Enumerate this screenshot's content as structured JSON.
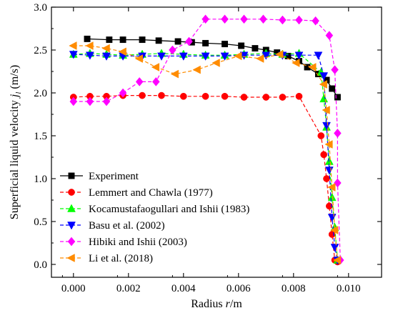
{
  "chart_data": {
    "type": "line",
    "xlabel": "Radius r/m",
    "ylabel": "Superficial liquid velocity j_l (m/s)",
    "xlim": [
      -0.0008,
      0.0112
    ],
    "ylim": [
      -0.15,
      3.0
    ],
    "x_ticks": [
      "0.000",
      "0.002",
      "0.004",
      "0.006",
      "0.008",
      "0.010"
    ],
    "y_ticks": [
      "0.0",
      "0.5",
      "1.0",
      "1.5",
      "2.0",
      "2.5",
      "3.0"
    ],
    "legend_position": "bottom-left",
    "grid": false,
    "series": [
      {
        "name": "Experiment",
        "color": "#000000",
        "dash": "solid",
        "marker": "square",
        "x": [
          0.0005,
          0.0013,
          0.0018,
          0.0025,
          0.0031,
          0.0038,
          0.0043,
          0.0048,
          0.0055,
          0.0061,
          0.0066,
          0.007,
          0.0074,
          0.0078,
          0.0082,
          0.0085,
          0.0089,
          0.0092,
          0.0094,
          0.0096
        ],
        "y": [
          2.63,
          2.62,
          2.62,
          2.62,
          2.61,
          2.6,
          2.59,
          2.58,
          2.57,
          2.55,
          2.52,
          2.5,
          2.47,
          2.43,
          2.37,
          2.3,
          2.22,
          2.15,
          2.05,
          1.95
        ]
      },
      {
        "name": "Lemmert and Chawla (1977)",
        "color": "#ff0000",
        "dash": "dashed",
        "marker": "circle",
        "x": [
          0.0,
          0.0006,
          0.0012,
          0.0018,
          0.0025,
          0.0032,
          0.004,
          0.0048,
          0.0055,
          0.0062,
          0.007,
          0.0076,
          0.0082,
          0.009,
          0.0091,
          0.0092,
          0.0093,
          0.0094,
          0.0095,
          0.0096
        ],
        "y": [
          1.95,
          1.96,
          1.96,
          1.97,
          1.97,
          1.97,
          1.96,
          1.96,
          1.96,
          1.95,
          1.95,
          1.95,
          1.96,
          1.5,
          1.28,
          1.0,
          0.68,
          0.35,
          0.05,
          0.03
        ]
      },
      {
        "name": "Kocamustafaogullari and Ishii (1983)",
        "color": "#00ff00",
        "dash": "dashed",
        "marker": "triangle-up",
        "x": [
          0.0,
          0.0006,
          0.0012,
          0.0018,
          0.0025,
          0.0032,
          0.004,
          0.0048,
          0.0055,
          0.0062,
          0.007,
          0.0076,
          0.0082,
          0.009,
          0.0091,
          0.0092,
          0.0093,
          0.0094,
          0.0095,
          0.0096
        ],
        "y": [
          2.45,
          2.46,
          2.45,
          2.44,
          2.45,
          2.46,
          2.45,
          2.44,
          2.44,
          2.45,
          2.46,
          2.45,
          2.46,
          2.24,
          1.93,
          1.6,
          1.2,
          0.78,
          0.43,
          0.05
        ]
      },
      {
        "name": "Basu et al. (2002)",
        "color": "#0000ff",
        "dash": "dashed",
        "marker": "triangle-down",
        "x": [
          0.0,
          0.0006,
          0.0012,
          0.0018,
          0.0025,
          0.0032,
          0.004,
          0.0048,
          0.0055,
          0.0062,
          0.007,
          0.0076,
          0.0082,
          0.0089,
          0.0091,
          0.0092,
          0.0093,
          0.0094,
          0.0095,
          0.0096
        ],
        "y": [
          2.45,
          2.44,
          2.43,
          2.43,
          2.43,
          2.43,
          2.43,
          2.43,
          2.43,
          2.44,
          2.44,
          2.44,
          2.44,
          2.44,
          2.2,
          1.62,
          1.1,
          0.55,
          0.2,
          0.05
        ]
      },
      {
        "name": "Hibiki and Ishii (2003)",
        "color": "#ff00ff",
        "dash": "dashed",
        "marker": "diamond",
        "x": [
          0.0,
          0.0006,
          0.0012,
          0.0018,
          0.0024,
          0.003,
          0.0036,
          0.0042,
          0.0048,
          0.0055,
          0.0062,
          0.0069,
          0.0076,
          0.0082,
          0.0088,
          0.0093,
          0.0095,
          0.0096,
          0.0096,
          0.0097
        ],
        "y": [
          1.9,
          1.9,
          1.9,
          2.0,
          2.13,
          2.13,
          2.5,
          2.6,
          2.86,
          2.86,
          2.86,
          2.86,
          2.85,
          2.85,
          2.84,
          2.67,
          2.27,
          1.53,
          0.95,
          0.05
        ]
      },
      {
        "name": "Li et al. (2018)",
        "color": "#ff8c00",
        "dash": "dashed",
        "marker": "triangle-left",
        "x": [
          0.0,
          0.0006,
          0.0012,
          0.0018,
          0.0024,
          0.003,
          0.0037,
          0.0045,
          0.0052,
          0.006,
          0.0068,
          0.0075,
          0.0081,
          0.0087,
          0.0091,
          0.0092,
          0.0093,
          0.0094,
          0.0095,
          0.0096
        ],
        "y": [
          2.55,
          2.55,
          2.52,
          2.48,
          2.4,
          2.3,
          2.22,
          2.27,
          2.35,
          2.43,
          2.4,
          2.45,
          2.35,
          2.3,
          2.1,
          1.8,
          1.4,
          0.9,
          0.4,
          0.05
        ]
      }
    ]
  }
}
